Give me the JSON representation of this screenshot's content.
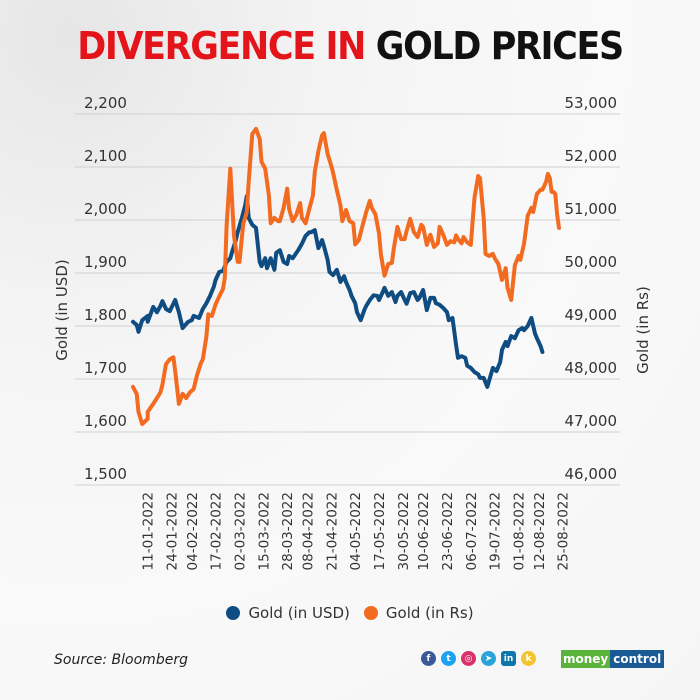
{
  "title": {
    "part1": "DIVERGENCE IN",
    "part2": "GOLD PRICES"
  },
  "colors": {
    "title_red": "#e4141b",
    "usd": "#0f4c81",
    "rs": "#f26b21"
  },
  "footer": {
    "source": "Source: Bloomberg",
    "social_icons": [
      "facebook-icon",
      "twitter-icon",
      "instagram-icon",
      "telegram-icon",
      "linkedin-icon",
      "koo-icon"
    ],
    "brand_part1": "money",
    "brand_part2": "control"
  },
  "chart_data": {
    "type": "line",
    "title": "DIVERGENCE IN GOLD PRICES",
    "ylabel": "Gold (in USD)",
    "y2label": "Gold (in Rs)",
    "ylim": [
      1500,
      2200
    ],
    "y2lim": [
      46000,
      53000
    ],
    "yticks": [
      "1,500",
      "1,600",
      "1,700",
      "1,800",
      "1,900",
      "2,000",
      "2,100",
      "2,200"
    ],
    "y2ticks": [
      "46,000",
      "47,000",
      "48,000",
      "49,000",
      "50,000",
      "51,000",
      "52,000",
      "53,000"
    ],
    "grid": true,
    "legend_position": "bottom",
    "x_start_date": "03-01-2022",
    "x_end_date": "31-08-2022",
    "xtick_labels": [
      "11-01-2022",
      "24-01-2022",
      "04-02-2022",
      "17-02-2022",
      "02-03-2022",
      "15-03-2022",
      "28-03-2022",
      "08-04-2022",
      "21-04-2022",
      "04-05-2022",
      "17-05-2022",
      "30-05-2022",
      "10-06-2022",
      "23-06-2022",
      "06-07-2022",
      "19-07-2022",
      "01-08-2022",
      "12-08-2022",
      "25-08-2022"
    ],
    "xtick_days": [
      8,
      21,
      32,
      45,
      58,
      71,
      84,
      95,
      108,
      121,
      134,
      147,
      158,
      171,
      184,
      197,
      210,
      221,
      234
    ],
    "series": [
      {
        "name": "Gold (in USD)",
        "axis": "left",
        "days": [
          0,
          2,
          3,
          5,
          8,
          8,
          11,
          13,
          15,
          16,
          18,
          20,
          23,
          25,
          27,
          30,
          32,
          33,
          36,
          38,
          40,
          42,
          44,
          45,
          47,
          49,
          51,
          53,
          54,
          56,
          57,
          59,
          61,
          62,
          63,
          65,
          67,
          69,
          70,
          72,
          73,
          75,
          77,
          78,
          80,
          82,
          84,
          85,
          87,
          89,
          90,
          92,
          94,
          96,
          97,
          99,
          101,
          103,
          104,
          106,
          107,
          109,
          111,
          113,
          115,
          116,
          118,
          119,
          121,
          122,
          124,
          126,
          127,
          129,
          131,
          133,
          134,
          136,
          137,
          139,
          141,
          143,
          144,
          146,
          148,
          149,
          151,
          153,
          155,
          156,
          158,
          160,
          162,
          164,
          165,
          167,
          169,
          171,
          172,
          174,
          176,
          177,
          179,
          181,
          182,
          184,
          186,
          188,
          189,
          191,
          193,
          195,
          196,
          198,
          200,
          201,
          203,
          204,
          206,
          208,
          210,
          212,
          213,
          215,
          217,
          219,
          220,
          222,
          223
        ],
        "values": [
          1808,
          1802,
          1789,
          1811,
          1819,
          1808,
          1836,
          1826,
          1838,
          1847,
          1832,
          1828,
          1849,
          1826,
          1796,
          1808,
          1811,
          1819,
          1815,
          1832,
          1843,
          1857,
          1874,
          1887,
          1902,
          1904,
          1921,
          1928,
          1940,
          1962,
          1977,
          2000,
          2026,
          2045,
          2004,
          1991,
          1985,
          1921,
          1913,
          1928,
          1909,
          1928,
          1906,
          1938,
          1943,
          1921,
          1917,
          1932,
          1928,
          1938,
          1943,
          1955,
          1970,
          1977,
          1977,
          1981,
          1947,
          1962,
          1951,
          1925,
          1902,
          1896,
          1906,
          1883,
          1894,
          1883,
          1868,
          1857,
          1843,
          1826,
          1811,
          1830,
          1838,
          1849,
          1858,
          1857,
          1849,
          1864,
          1872,
          1857,
          1864,
          1845,
          1857,
          1864,
          1849,
          1842,
          1862,
          1864,
          1849,
          1853,
          1868,
          1830,
          1853,
          1853,
          1843,
          1840,
          1834,
          1826,
          1811,
          1815,
          1764,
          1740,
          1743,
          1740,
          1725,
          1721,
          1713,
          1709,
          1702,
          1702,
          1685,
          1709,
          1721,
          1715,
          1732,
          1755,
          1770,
          1762,
          1781,
          1777,
          1792,
          1796,
          1792,
          1800,
          1815,
          1785,
          1777,
          1762,
          1751,
          1736,
          1751,
          1758,
          1754
        ]
      },
      {
        "name": "Gold (in Rs)",
        "axis": "right",
        "days": [
          0,
          2,
          3,
          5,
          8,
          8,
          11,
          13,
          15,
          16,
          18,
          20,
          22,
          23,
          25,
          27,
          29,
          31,
          33,
          35,
          37,
          38,
          40,
          41,
          43,
          45,
          47,
          49,
          50,
          51,
          53,
          55,
          57,
          58,
          60,
          62,
          63,
          65,
          67,
          69,
          70,
          72,
          74,
          75,
          77,
          79,
          80,
          82,
          84,
          85,
          87,
          89,
          91,
          92,
          94,
          96,
          98,
          99,
          101,
          103,
          104,
          106,
          108,
          109,
          111,
          113,
          114,
          116,
          118,
          120,
          121,
          123,
          125,
          127,
          129,
          130,
          132,
          134,
          135,
          137,
          139,
          141,
          142,
          144,
          146,
          148,
          149,
          151,
          153,
          155,
          157,
          158,
          160,
          162,
          164,
          166,
          167,
          169,
          171,
          173,
          175,
          176,
          177,
          179,
          180,
          182,
          184,
          186,
          188,
          189,
          191,
          192,
          194,
          196,
          197,
          199,
          201,
          203,
          204,
          206,
          208,
          210,
          211,
          213,
          215,
          217,
          218,
          220,
          222,
          223
        ],
        "values": [
          47850,
          47720,
          47380,
          47150,
          47250,
          47380,
          47530,
          47640,
          47750,
          47890,
          48280,
          48370,
          48410,
          48150,
          47530,
          47720,
          47640,
          47750,
          47810,
          48090,
          48300,
          48370,
          48800,
          49220,
          49190,
          49410,
          49560,
          49700,
          49910,
          50890,
          51970,
          50700,
          50210,
          50210,
          50920,
          51150,
          51720,
          52620,
          52720,
          52530,
          52100,
          51970,
          51460,
          50940,
          51040,
          50980,
          50980,
          51230,
          51590,
          51210,
          50980,
          51100,
          51320,
          51040,
          50940,
          51210,
          51460,
          51910,
          52300,
          52600,
          52640,
          52250,
          52020,
          51890,
          51570,
          51270,
          50980,
          51190,
          50980,
          50940,
          50540,
          50620,
          50890,
          51150,
          51360,
          51230,
          51110,
          50750,
          50350,
          49950,
          50170,
          50190,
          50450,
          50870,
          50640,
          50640,
          50790,
          51020,
          50770,
          50680,
          50910,
          50870,
          50530,
          50720,
          50490,
          50560,
          50870,
          50720,
          50530,
          50600,
          50580,
          50710,
          50640,
          50560,
          50680,
          50580,
          50530,
          51420,
          51830,
          51790,
          51040,
          50360,
          50320,
          50360,
          50280,
          50170,
          49870,
          50090,
          49720,
          49490,
          50150,
          50320,
          50250,
          50560,
          51080,
          51230,
          51150,
          51490,
          51570,
          51570
        ],
        "tail_days": [
          225,
          226,
          227,
          228,
          229,
          230,
          231,
          232
        ],
        "tail_values": [
          51720,
          51870,
          51790,
          51530,
          51530,
          51490,
          51110,
          50850
        ]
      }
    ]
  },
  "legend": [
    {
      "label": "Gold (in USD)",
      "color": "#0f4c81"
    },
    {
      "label": "Gold (in Rs)",
      "color": "#f26b21"
    }
  ]
}
